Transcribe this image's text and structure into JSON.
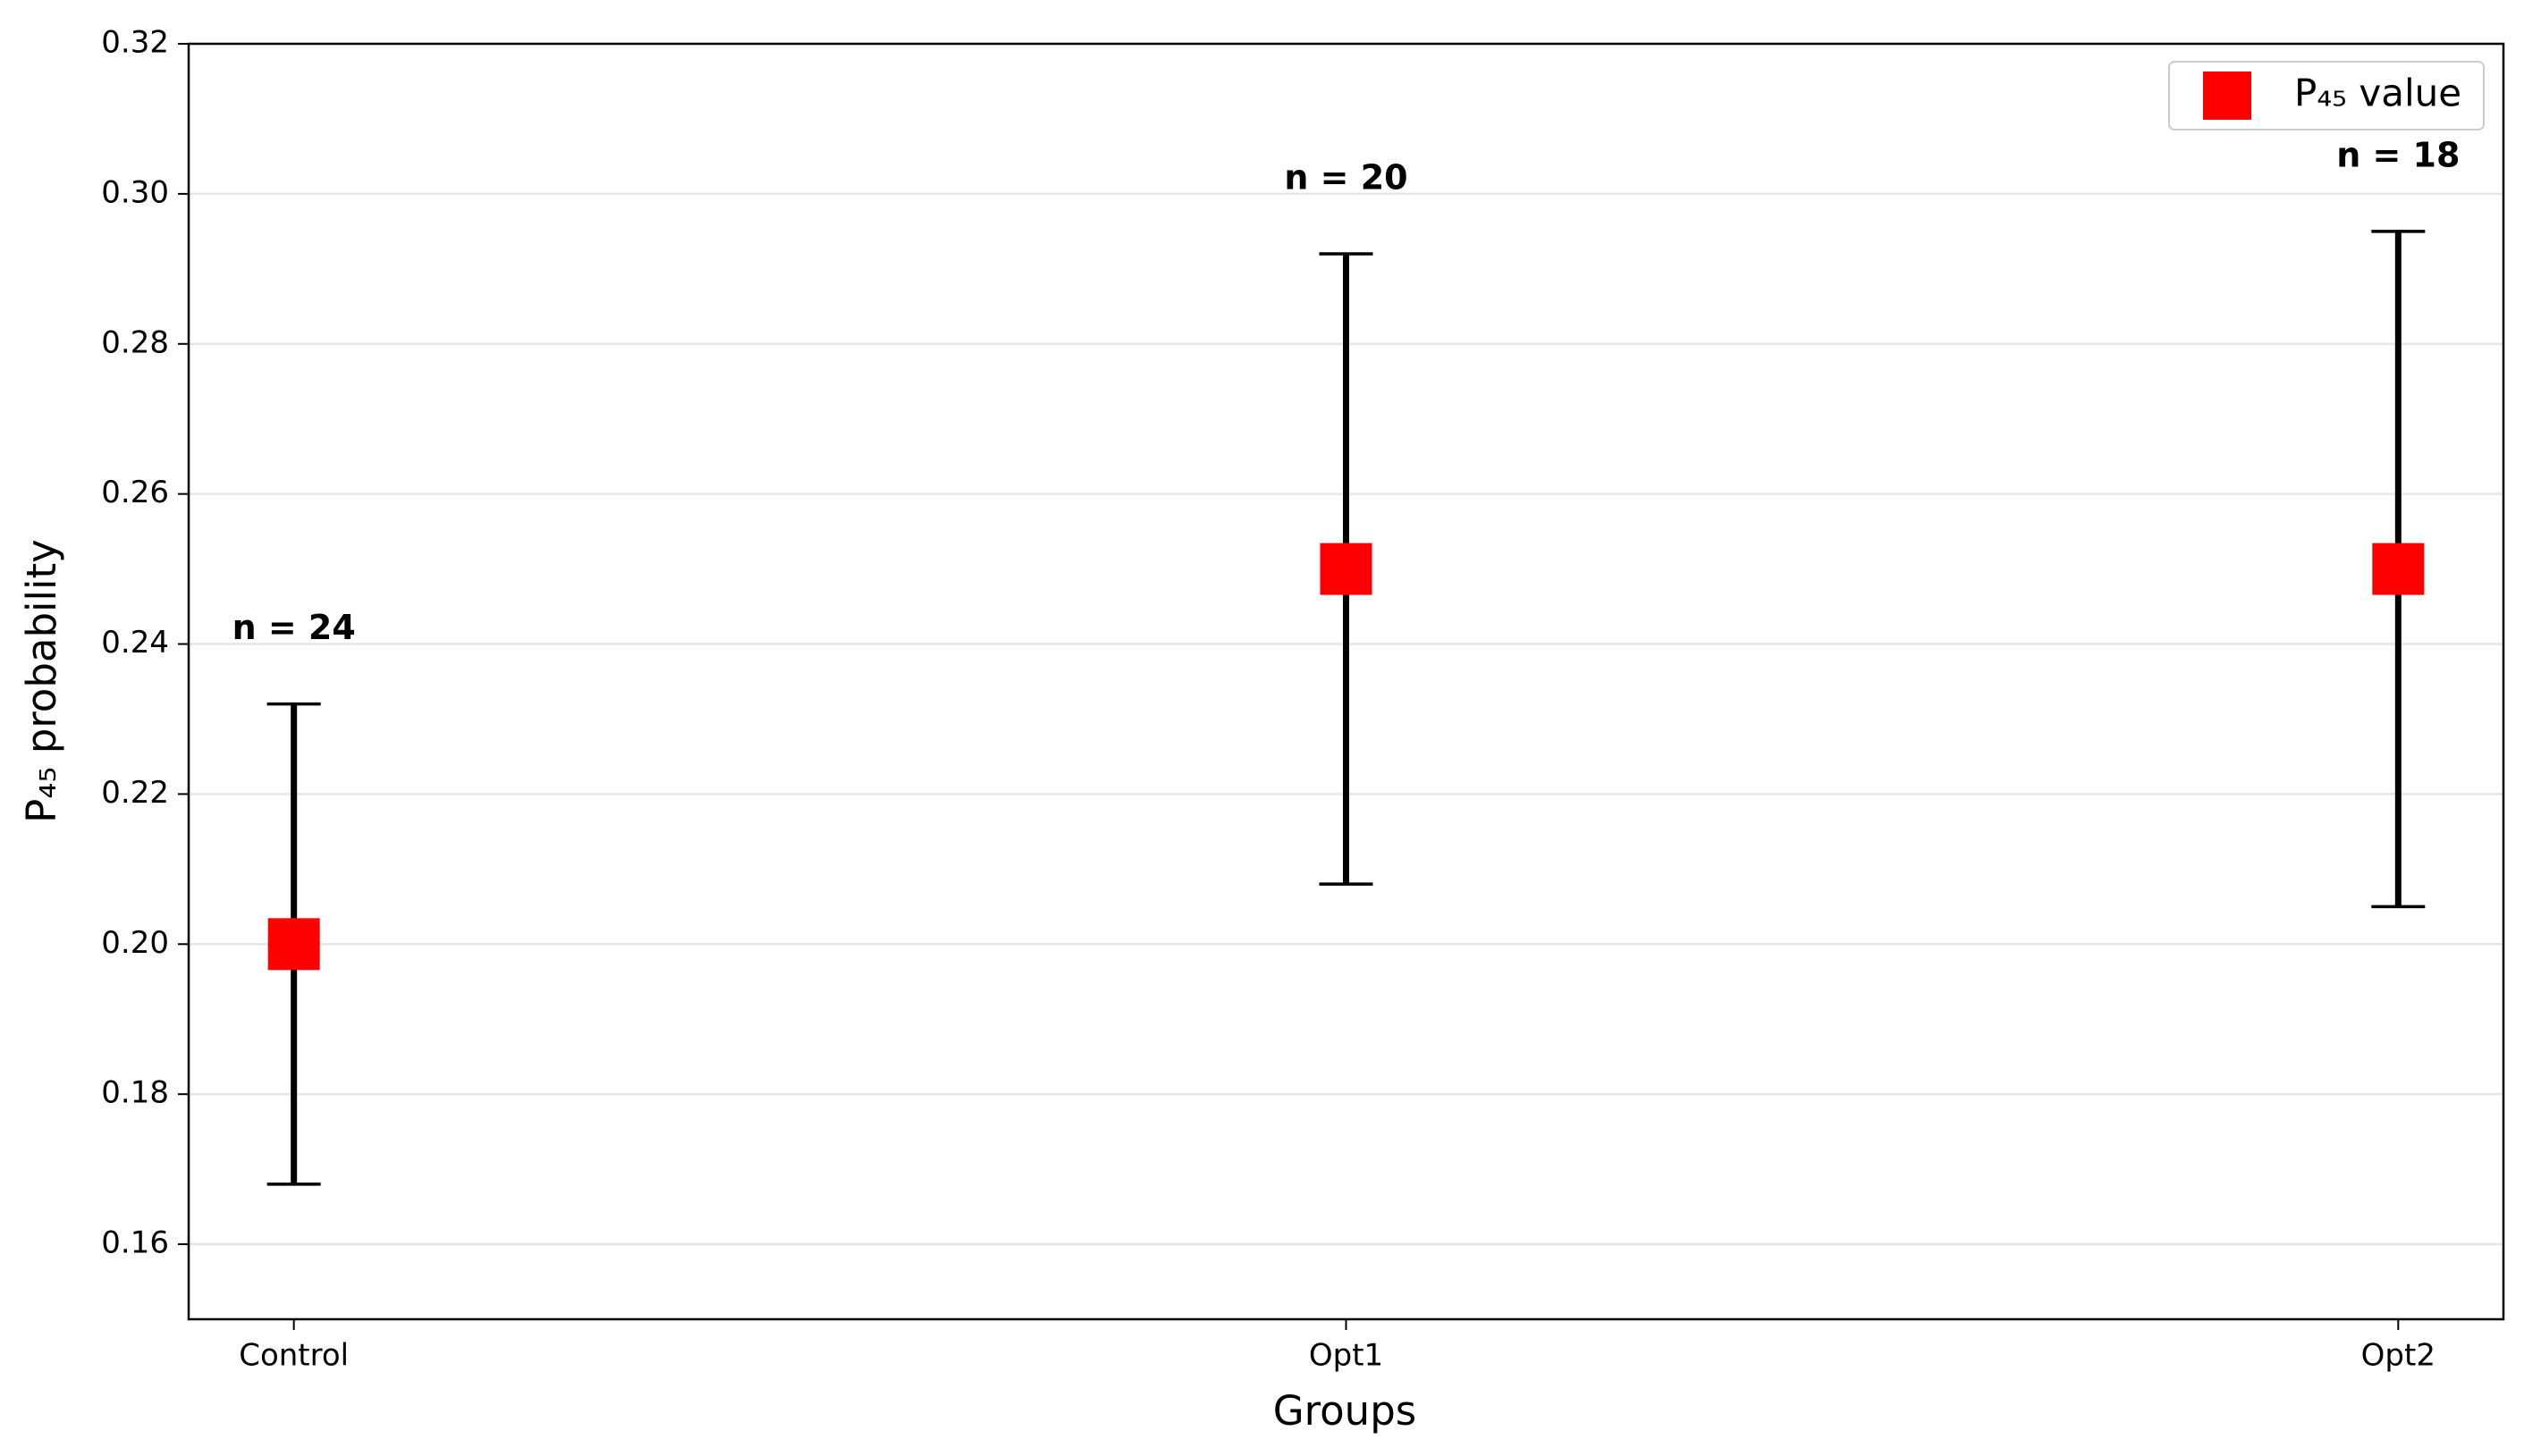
{
  "chart_data": {
    "type": "errorbar",
    "xlabel": "Groups",
    "ylabel": "P₄₅ probability",
    "categories": [
      "Control",
      "Opt1",
      "Opt2"
    ],
    "series": [
      {
        "name": "P₄₅ value",
        "color": "#ff0000",
        "values": [
          0.2,
          0.25,
          0.25
        ],
        "errors": [
          0.032,
          0.042,
          0.045
        ]
      }
    ],
    "annotations": [
      "n = 24",
      "n = 20",
      "n = 18"
    ],
    "ylim": [
      0.15,
      0.32
    ],
    "yticks": [
      0.16,
      0.18,
      {
        "value": 0.2,
        "label": "0.20"
      },
      0.22,
      0.24,
      0.26,
      0.28,
      {
        "value": 0.3,
        "label": "0.30"
      },
      0.32
    ],
    "grid": true,
    "legend": "upper right"
  }
}
